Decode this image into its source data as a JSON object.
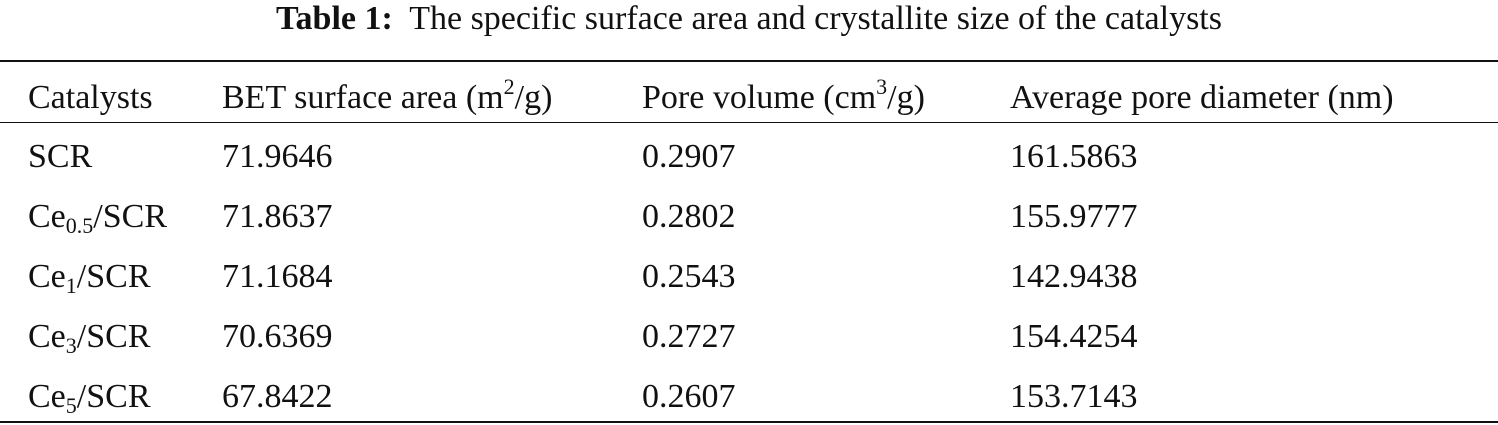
{
  "caption": {
    "label": "Table 1:",
    "text": "The specific surface area and crystallite size of the catalysts"
  },
  "table": {
    "header": [
      [
        {
          "text": "Catalysts"
        }
      ],
      [
        {
          "text": "BET surface area (m"
        },
        {
          "sup": "2"
        },
        {
          "text": "/g)"
        }
      ],
      [
        {
          "text": "Pore volume (cm"
        },
        {
          "sup": "3"
        },
        {
          "text": "/g)"
        }
      ],
      [
        {
          "text": "Average pore diameter (nm)"
        }
      ]
    ],
    "rows": [
      [
        [
          {
            "text": "SCR"
          }
        ],
        "71.9646",
        "0.2907",
        "161.5863"
      ],
      [
        [
          {
            "text": "Ce"
          },
          {
            "sub": "0.5"
          },
          {
            "text": "/SCR"
          }
        ],
        "71.8637",
        "0.2802",
        "155.9777"
      ],
      [
        [
          {
            "text": "Ce"
          },
          {
            "sub": "1"
          },
          {
            "text": "/SCR"
          }
        ],
        "71.1684",
        "0.2543",
        "142.9438"
      ],
      [
        [
          {
            "text": "Ce"
          },
          {
            "sub": "3"
          },
          {
            "text": "/SCR"
          }
        ],
        "70.6369",
        "0.2727",
        "154.4254"
      ],
      [
        [
          {
            "text": "Ce"
          },
          {
            "sub": "5"
          },
          {
            "text": "/SCR"
          }
        ],
        "67.8422",
        "0.2607",
        "153.7143"
      ]
    ]
  }
}
